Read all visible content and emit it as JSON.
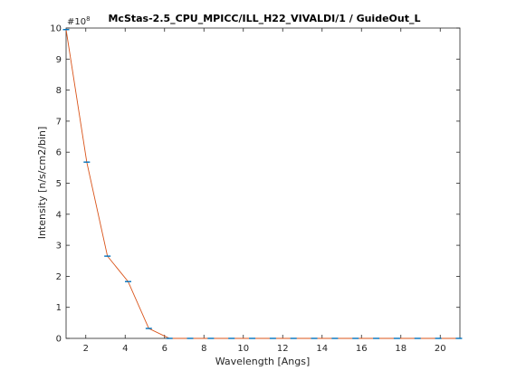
{
  "chart_data": {
    "type": "line",
    "title": "McStas-2.5_CPU_MPICC/ILL_H22_VIVALDI/1 / GuideOut_L",
    "xlabel": "Wavelength [Angs]",
    "ylabel": "Intensity [n/s/cm2/bin]",
    "y_exponent_label": "#10",
    "y_exponent_power": "8",
    "xlim": [
      1,
      21
    ],
    "ylim": [
      0,
      10
    ],
    "xticks": [
      2,
      4,
      6,
      8,
      10,
      12,
      14,
      16,
      18,
      20
    ],
    "yticks": [
      0,
      1,
      2,
      3,
      4,
      5,
      6,
      7,
      8,
      9,
      10
    ],
    "grid": false,
    "series": [
      {
        "color": "#d95319",
        "errorbar_color": "#0072bd",
        "x": [
          1.0,
          2.05,
          3.1,
          4.15,
          5.2,
          6.25,
          7.3,
          8.35,
          9.4,
          10.45,
          11.5,
          12.55,
          13.6,
          14.65,
          15.7,
          16.75,
          17.8,
          18.85,
          19.9,
          20.95
        ],
        "y": [
          9.95,
          5.68,
          2.65,
          1.83,
          0.32,
          0.0,
          0.0,
          0.0,
          0.0,
          0.0,
          0.0,
          0.0,
          0.0,
          0.0,
          0.0,
          0.0,
          0.0,
          0.0,
          0.0,
          0.0
        ]
      }
    ]
  }
}
